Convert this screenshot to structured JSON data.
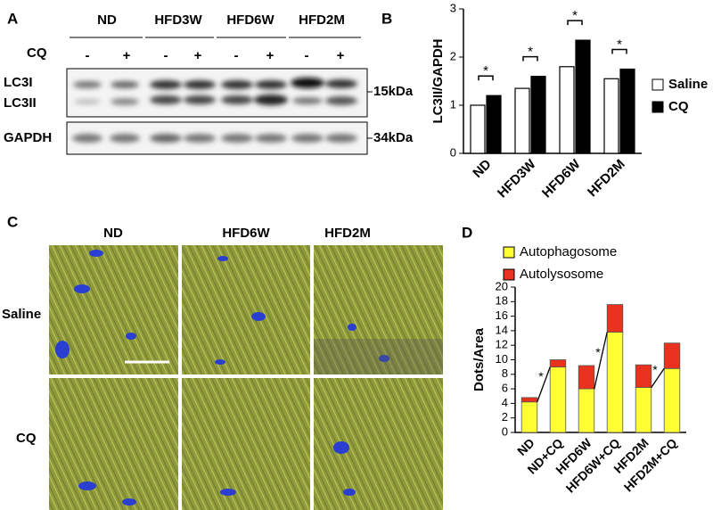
{
  "panel_a": {
    "label": "A",
    "groups": [
      "ND",
      "HFD3W",
      "HFD6W",
      "HFD2M"
    ],
    "treatment": "CQ",
    "signs": [
      "-",
      "+"
    ],
    "bands": [
      "LC3I",
      "LC3II",
      "GAPDH"
    ],
    "sizes": [
      "15kDa",
      "34kDa"
    ]
  },
  "panel_c": {
    "label": "C",
    "columns": [
      "ND",
      "HFD6W",
      "HFD2M"
    ],
    "rows": [
      "Saline",
      "CQ"
    ]
  },
  "chart_data": [
    {
      "type": "bar",
      "panel": "B",
      "y_label": "LC3II/GAPDH",
      "categories": [
        "ND",
        "HFD3W",
        "HFD6W",
        "HFD2M"
      ],
      "series": [
        {
          "name": "Saline",
          "color": "#ffffff",
          "values": [
            1.0,
            1.35,
            1.8,
            1.55
          ]
        },
        {
          "name": "CQ",
          "color": "#000000",
          "values": [
            1.2,
            1.6,
            2.35,
            1.75
          ]
        }
      ],
      "ylim": [
        0,
        3
      ],
      "yticks": [
        0,
        1,
        2,
        3
      ],
      "annotations": [
        "*",
        "*",
        "*",
        "*"
      ]
    },
    {
      "type": "stacked_bar",
      "panel": "D",
      "y_label": "Dots/Area",
      "categories": [
        "ND",
        "ND+CQ",
        "HFD6W",
        "HFD6W+CQ",
        "HFD2M",
        "HFD2M+CQ"
      ],
      "series": [
        {
          "name": "Autophagosome",
          "color": "#ffff33",
          "values": [
            4.2,
            9.0,
            6.0,
            13.8,
            6.2,
            8.8
          ]
        },
        {
          "name": "Autolysosome",
          "color": "#e8321e",
          "values": [
            0.6,
            1.0,
            3.2,
            3.8,
            3.1,
            3.5
          ]
        }
      ],
      "ylim": [
        0,
        20
      ],
      "yticks": [
        0,
        2,
        4,
        6,
        8,
        10,
        12,
        14,
        16,
        18,
        20
      ],
      "annotations": [
        "*",
        "*",
        "*"
      ]
    }
  ]
}
